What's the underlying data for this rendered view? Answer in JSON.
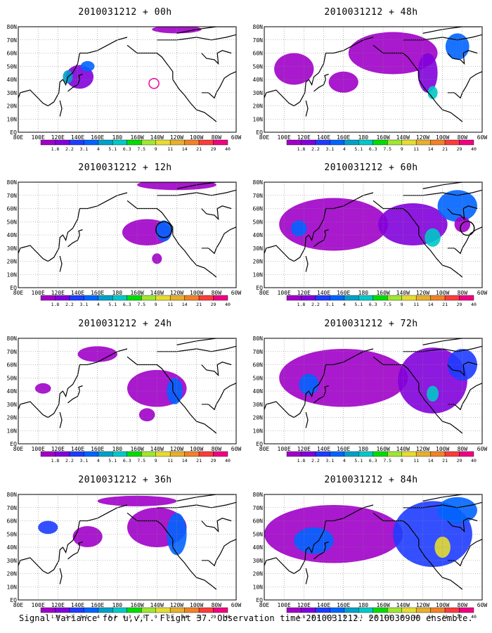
{
  "figure": {
    "footer": "Signal Variance for u,v,T. Flight 37. Observation time 2010031212. 2010030900 ensemble."
  },
  "axes": {
    "lat_labels": [
      "80N",
      "70N",
      "60N",
      "50N",
      "40N",
      "30N",
      "20N",
      "10N",
      "EQ"
    ],
    "lon_labels": [
      "80E",
      "100E",
      "120E",
      "140E",
      "160E",
      "180",
      "160W",
      "140W",
      "120W",
      "100W",
      "80W",
      "60W"
    ]
  },
  "colorbar": {
    "levels": [
      "1.8",
      "2.2",
      "3.1",
      "4",
      "5.1",
      "6.3",
      "7.5",
      "9",
      "11",
      "14",
      "21",
      "29",
      "40"
    ],
    "colors": [
      "#a000c8",
      "#8200dc",
      "#1e3cff",
      "#0064ff",
      "#00a0c8",
      "#00c8c8",
      "#00dc00",
      "#a0e632",
      "#e6dc32",
      "#e6af2d",
      "#f08228",
      "#fa3c3c",
      "#f00082"
    ],
    "swatch_count": 13
  },
  "panels": [
    {
      "id": "p00",
      "title": "2010031212 + 00h",
      "col": 0,
      "row": 0,
      "blobs": [
        {
          "lon": 142,
          "lat": 42,
          "rx": 14,
          "ry": 9,
          "level": 1
        },
        {
          "lon": 150,
          "lat": 50,
          "rx": 7,
          "ry": 4,
          "level": 3
        },
        {
          "lon": 130,
          "lat": 42,
          "rx": 5,
          "ry": 5,
          "level": 4
        },
        {
          "lon": -120,
          "lat": 78,
          "rx": 25,
          "ry": 3,
          "level": 0
        }
      ],
      "circles": [
        {
          "lon": -143,
          "lat": 37,
          "r": 5,
          "color": "#f000a0"
        }
      ]
    },
    {
      "id": "p48",
      "title": "2010031212 + 48h",
      "col": 1,
      "row": 0,
      "blobs": [
        {
          "lon": -150,
          "lat": 60,
          "rx": 45,
          "ry": 16,
          "level": 0
        },
        {
          "lon": -115,
          "lat": 45,
          "rx": 10,
          "ry": 15,
          "level": 1
        },
        {
          "lon": -110,
          "lat": 30,
          "rx": 5,
          "ry": 5,
          "level": 5
        },
        {
          "lon": -85,
          "lat": 65,
          "rx": 12,
          "ry": 10,
          "level": 3
        },
        {
          "lon": 110,
          "lat": 48,
          "rx": 20,
          "ry": 12,
          "level": 0
        },
        {
          "lon": 160,
          "lat": 38,
          "rx": 15,
          "ry": 8,
          "level": 0
        }
      ],
      "circles": []
    },
    {
      "id": "p12",
      "title": "2010031212 + 12h",
      "col": 0,
      "row": 1,
      "blobs": [
        {
          "lon": -150,
          "lat": 42,
          "rx": 25,
          "ry": 10,
          "level": 0
        },
        {
          "lon": -133,
          "lat": 43,
          "rx": 8,
          "ry": 8,
          "level": 3
        },
        {
          "lon": -140,
          "lat": 22,
          "rx": 5,
          "ry": 4,
          "level": 0
        },
        {
          "lon": -120,
          "lat": 78,
          "rx": 40,
          "ry": 4,
          "level": 0
        }
      ],
      "circles": [
        {
          "lon": -133,
          "lat": 44,
          "r": 8,
          "color": "#000000"
        }
      ]
    },
    {
      "id": "p60",
      "title": "2010031212 + 60h",
      "col": 1,
      "row": 1,
      "blobs": [
        {
          "lon": 150,
          "lat": 48,
          "rx": 55,
          "ry": 20,
          "level": 0
        },
        {
          "lon": -130,
          "lat": 48,
          "rx": 35,
          "ry": 16,
          "level": 1
        },
        {
          "lon": -110,
          "lat": 38,
          "rx": 8,
          "ry": 7,
          "level": 5
        },
        {
          "lon": -85,
          "lat": 62,
          "rx": 20,
          "ry": 12,
          "level": 3
        },
        {
          "lon": 115,
          "lat": 45,
          "rx": 8,
          "ry": 6,
          "level": 3
        },
        {
          "lon": -80,
          "lat": 48,
          "rx": 8,
          "ry": 6,
          "level": 0
        }
      ],
      "circles": [
        {
          "lon": -75,
          "lat": 45,
          "r": 7,
          "color": "#000000"
        }
      ]
    },
    {
      "id": "p24",
      "title": "2010031212 + 24h",
      "col": 0,
      "row": 2,
      "blobs": [
        {
          "lon": -140,
          "lat": 42,
          "rx": 30,
          "ry": 14,
          "level": 0
        },
        {
          "lon": -122,
          "lat": 40,
          "rx": 8,
          "ry": 10,
          "level": 3
        },
        {
          "lon": 105,
          "lat": 42,
          "rx": 8,
          "ry": 4,
          "level": 0
        },
        {
          "lon": 160,
          "lat": 68,
          "rx": 20,
          "ry": 6,
          "level": 0
        },
        {
          "lon": -150,
          "lat": 22,
          "rx": 8,
          "ry": 5,
          "level": 0
        }
      ],
      "circles": []
    },
    {
      "id": "p72",
      "title": "2010031212 + 72h",
      "col": 1,
      "row": 2,
      "blobs": [
        {
          "lon": 160,
          "lat": 50,
          "rx": 65,
          "ry": 22,
          "level": 0
        },
        {
          "lon": -110,
          "lat": 48,
          "rx": 35,
          "ry": 25,
          "level": 1
        },
        {
          "lon": -110,
          "lat": 38,
          "rx": 6,
          "ry": 6,
          "level": 5
        },
        {
          "lon": 125,
          "lat": 45,
          "rx": 10,
          "ry": 8,
          "level": 3
        },
        {
          "lon": -80,
          "lat": 60,
          "rx": 15,
          "ry": 12,
          "level": 2
        }
      ],
      "circles": []
    },
    {
      "id": "p36",
      "title": "2010031212 + 36h",
      "col": 0,
      "row": 3,
      "blobs": [
        {
          "lon": -140,
          "lat": 55,
          "rx": 30,
          "ry": 15,
          "level": 0
        },
        {
          "lon": -120,
          "lat": 50,
          "rx": 10,
          "ry": 16,
          "level": 3
        },
        {
          "lon": 110,
          "lat": 55,
          "rx": 10,
          "ry": 5,
          "level": 2
        },
        {
          "lon": 150,
          "lat": 48,
          "rx": 15,
          "ry": 8,
          "level": 0
        },
        {
          "lon": -160,
          "lat": 75,
          "rx": 40,
          "ry": 4,
          "level": 0
        }
      ],
      "circles": []
    },
    {
      "id": "p84",
      "title": "2010031212 + 84h",
      "col": 1,
      "row": 3,
      "blobs": [
        {
          "lon": 150,
          "lat": 50,
          "rx": 70,
          "ry": 22,
          "level": 0
        },
        {
          "lon": -110,
          "lat": 50,
          "rx": 40,
          "ry": 25,
          "level": 2
        },
        {
          "lon": -100,
          "lat": 40,
          "rx": 8,
          "ry": 8,
          "level": 8
        },
        {
          "lon": 130,
          "lat": 45,
          "rx": 20,
          "ry": 10,
          "level": 3
        },
        {
          "lon": -85,
          "lat": 68,
          "rx": 20,
          "ry": 10,
          "level": 3
        }
      ],
      "circles": []
    }
  ]
}
